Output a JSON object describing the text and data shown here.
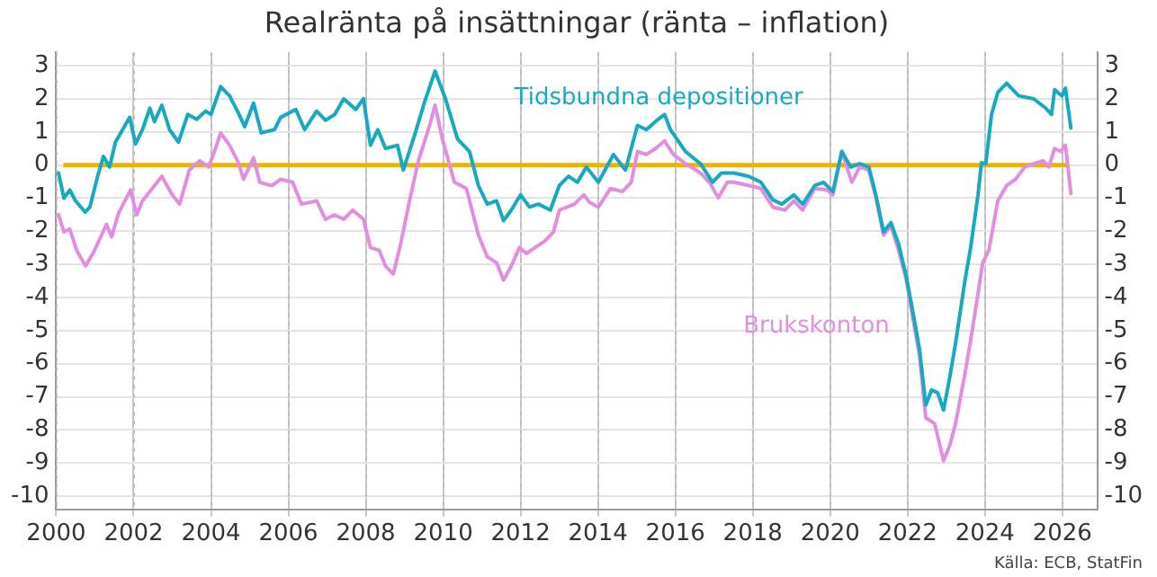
{
  "chart_data": {
    "type": "line",
    "title": "Realränta på insättningar (ränta – inflation)",
    "annotations": [
      "Källa: ECB, StatFin"
    ],
    "xlim": [
      2000,
      2026.9
    ],
    "xticks": [
      2000,
      2002,
      2004,
      2006,
      2008,
      2010,
      2012,
      2014,
      2016,
      2018,
      2020,
      2022,
      2024,
      2026
    ],
    "ylim": [
      -10.4,
      3.4
    ],
    "yticks": [
      -10,
      -9,
      -8,
      -7,
      -6,
      -5,
      -4,
      -3,
      -2,
      -1,
      0,
      1,
      2,
      3
    ],
    "y2lim": [
      -10.4,
      3.4
    ],
    "y2ticks": [
      -10,
      -9,
      -8,
      -7,
      -6,
      -5,
      -4,
      -3,
      -2,
      -1,
      0,
      1,
      2,
      3
    ],
    "grid": true,
    "legend": false,
    "marker": "none",
    "line_style": "solid",
    "ref_lines": [
      {
        "axis": "y",
        "value": 0,
        "color": "#e8b400"
      }
    ],
    "series": [
      {
        "name": "Tidsbundna depositioner",
        "color": "#17a9c0",
        "x": [
          2000.06,
          2000.2,
          2000.35,
          2000.5,
          2000.75,
          2000.87,
          2001.07,
          2001.22,
          2001.38,
          2001.53,
          2001.9,
          2002.05,
          2002.23,
          2002.42,
          2002.54,
          2002.73,
          2002.93,
          2003.16,
          2003.4,
          2003.63,
          2003.86,
          2004.0,
          2004.25,
          2004.48,
          2004.71,
          2004.87,
          2005.1,
          2005.3,
          2005.64,
          2005.8,
          2006.19,
          2006.42,
          2006.73,
          2006.96,
          2007.2,
          2007.43,
          2007.74,
          2007.94,
          2008.12,
          2008.31,
          2008.51,
          2008.82,
          2008.97,
          2009.28,
          2009.52,
          2009.79,
          2010.06,
          2010.37,
          2010.68,
          2010.91,
          2011.14,
          2011.38,
          2011.56,
          2011.76,
          2012.0,
          2012.23,
          2012.46,
          2012.77,
          2013.0,
          2013.24,
          2013.47,
          2013.7,
          2014.01,
          2014.4,
          2014.71,
          2015.02,
          2015.25,
          2015.52,
          2015.72,
          2015.87,
          2016.26,
          2016.65,
          2016.96,
          2017.19,
          2017.51,
          2017.9,
          2018.21,
          2018.52,
          2018.75,
          2019.06,
          2019.29,
          2019.6,
          2019.83,
          2020.07,
          2020.3,
          2020.53,
          2020.76,
          2021.0,
          2021.18,
          2021.38,
          2021.57,
          2021.77,
          2021.96,
          2022.11,
          2022.31,
          2022.47,
          2022.62,
          2022.78,
          2022.93,
          2023.09,
          2023.24,
          2023.48,
          2023.63,
          2023.82,
          2023.91,
          2024.02,
          2024.17,
          2024.33,
          2024.56,
          2024.87,
          2025.26,
          2025.57,
          2025.72,
          2025.8,
          2025.99,
          2026.08,
          2026.22
        ],
        "values": [
          -0.24,
          -1.0,
          -0.75,
          -1.08,
          -1.42,
          -1.27,
          -0.34,
          0.26,
          -0.06,
          0.69,
          1.44,
          0.64,
          1.07,
          1.72,
          1.31,
          1.81,
          1.07,
          0.69,
          1.53,
          1.38,
          1.63,
          1.53,
          2.37,
          2.09,
          1.57,
          1.16,
          1.87,
          0.97,
          1.07,
          1.44,
          1.68,
          1.07,
          1.63,
          1.35,
          1.53,
          2.0,
          1.68,
          2.0,
          0.6,
          1.07,
          0.5,
          0.6,
          -0.15,
          0.97,
          1.91,
          2.84,
          2.0,
          0.79,
          0.41,
          -0.62,
          -1.18,
          -1.08,
          -1.68,
          -1.36,
          -0.9,
          -1.27,
          -1.18,
          -1.36,
          -0.62,
          -0.34,
          -0.52,
          -0.06,
          -0.52,
          0.32,
          -0.15,
          1.2,
          1.07,
          1.35,
          1.53,
          1.07,
          0.41,
          0.04,
          -0.52,
          -0.24,
          -0.24,
          -0.34,
          -0.52,
          -1.05,
          -1.18,
          -0.9,
          -1.18,
          -0.62,
          -0.52,
          -0.8,
          0.41,
          -0.06,
          0.04,
          -0.06,
          -0.9,
          -2.02,
          -1.74,
          -2.39,
          -3.33,
          -4.26,
          -5.57,
          -7.25,
          -6.79,
          -6.88,
          -7.4,
          -6.41,
          -5.38,
          -3.51,
          -2.49,
          -0.9,
          0.07,
          0.04,
          1.53,
          2.19,
          2.47,
          2.09,
          2.0,
          1.72,
          1.53,
          2.28,
          2.09,
          2.32,
          1.12
        ]
      },
      {
        "name": "Brukskonton",
        "color": "#e28ee0",
        "x": [
          2000.06,
          2000.2,
          2000.35,
          2000.53,
          2000.76,
          2000.99,
          2001.3,
          2001.43,
          2001.61,
          2001.92,
          2002.08,
          2002.23,
          2002.54,
          2002.73,
          2003.0,
          2003.19,
          2003.44,
          2003.71,
          2003.94,
          2004.09,
          2004.25,
          2004.48,
          2004.71,
          2004.84,
          2005.1,
          2005.26,
          2005.57,
          2005.8,
          2006.11,
          2006.34,
          2006.73,
          2006.96,
          2007.19,
          2007.43,
          2007.66,
          2007.94,
          2008.12,
          2008.35,
          2008.51,
          2008.71,
          2008.9,
          2009.13,
          2009.36,
          2009.64,
          2009.79,
          2009.98,
          2010.29,
          2010.6,
          2010.91,
          2011.14,
          2011.38,
          2011.56,
          2011.76,
          2011.97,
          2012.15,
          2012.38,
          2012.62,
          2012.85,
          2013.0,
          2013.39,
          2013.63,
          2013.78,
          2014.01,
          2014.32,
          2014.63,
          2014.86,
          2015.02,
          2015.25,
          2015.49,
          2015.72,
          2015.95,
          2016.26,
          2016.65,
          2016.88,
          2017.11,
          2017.34,
          2017.51,
          2017.9,
          2018.21,
          2018.52,
          2018.83,
          2019.06,
          2019.29,
          2019.6,
          2019.91,
          2020.07,
          2020.3,
          2020.56,
          2020.76,
          2021.0,
          2021.18,
          2021.38,
          2021.57,
          2021.77,
          2021.96,
          2022.11,
          2022.31,
          2022.47,
          2022.7,
          2022.93,
          2023.09,
          2023.24,
          2023.48,
          2023.63,
          2023.82,
          2023.94,
          2024.1,
          2024.33,
          2024.56,
          2024.79,
          2025.03,
          2025.26,
          2025.5,
          2025.65,
          2025.8,
          2025.96,
          2026.08,
          2026.22
        ],
        "values": [
          -1.5,
          -2.02,
          -1.93,
          -2.58,
          -3.05,
          -2.58,
          -1.79,
          -2.17,
          -1.46,
          -0.75,
          -1.5,
          -1.08,
          -0.62,
          -0.34,
          -0.9,
          -1.18,
          -0.15,
          0.13,
          -0.06,
          0.41,
          0.97,
          0.6,
          0.07,
          -0.43,
          0.22,
          -0.52,
          -0.62,
          -0.43,
          -0.52,
          -1.18,
          -1.08,
          -1.64,
          -1.5,
          -1.64,
          -1.36,
          -1.64,
          -2.49,
          -2.58,
          -3.05,
          -3.29,
          -2.39,
          -1.08,
          0.13,
          1.16,
          1.81,
          0.79,
          -0.52,
          -0.71,
          -2.11,
          -2.77,
          -2.95,
          -3.48,
          -3.05,
          -2.49,
          -2.67,
          -2.49,
          -2.3,
          -2.02,
          -1.36,
          -1.18,
          -0.9,
          -1.12,
          -1.27,
          -0.71,
          -0.8,
          -0.52,
          0.41,
          0.32,
          0.5,
          0.73,
          0.32,
          0.04,
          -0.24,
          -0.52,
          -0.99,
          -0.52,
          -0.52,
          -0.62,
          -0.71,
          -1.27,
          -1.36,
          -1.08,
          -1.36,
          -0.71,
          -0.75,
          -0.9,
          0.41,
          -0.52,
          -0.06,
          -0.15,
          -0.99,
          -2.11,
          -1.83,
          -2.58,
          -3.42,
          -4.45,
          -5.76,
          -7.63,
          -7.81,
          -8.93,
          -8.47,
          -7.81,
          -6.32,
          -5.29,
          -3.89,
          -2.95,
          -2.58,
          -1.08,
          -0.62,
          -0.43,
          -0.06,
          0.04,
          0.13,
          -0.06,
          0.5,
          0.41,
          0.6,
          -0.86
        ]
      }
    ]
  }
}
